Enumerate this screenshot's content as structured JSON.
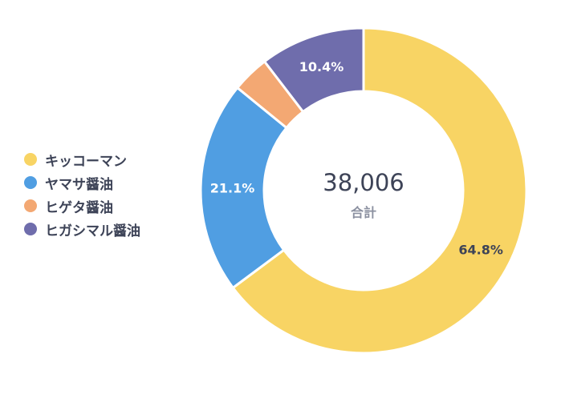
{
  "chart_data": {
    "type": "pie",
    "variant": "donut",
    "categories": [
      "キッコーマン",
      "ヤマサ醤油",
      "ヒゲタ醤油",
      "ヒガシマル醤油"
    ],
    "values": [
      64.8,
      21.1,
      3.7,
      10.4
    ],
    "value_labels": [
      "64.8%",
      "21.1%",
      "",
      "10.4%"
    ],
    "colors": [
      "#f8d464",
      "#509ee2",
      "#f3a873",
      "#6f6dac"
    ],
    "center_total": "38,006",
    "center_caption": "合計",
    "legend_position": "left"
  }
}
